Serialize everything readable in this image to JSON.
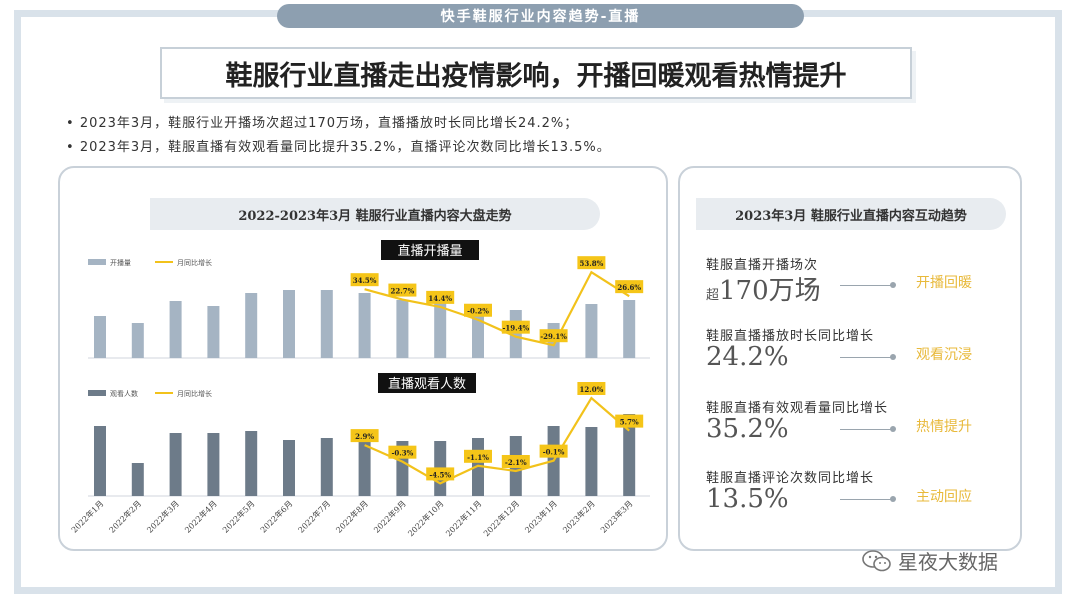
{
  "banner": "快手鞋服行业内容趋势-直播",
  "headline": "鞋服行业直播走出疫情影响，开播回暖观看热情提升",
  "bullets": [
    "2023年3月，鞋服行业开播场次超过170万场，直播播放时长同比增长24.2%；",
    "2023年3月，鞋服直播有效观看量同比提升35.2%，直播评论次数同比增长13.5%。"
  ],
  "left_panel": {
    "title": "2022-2023年3月 鞋服行业直播内容大盘走势"
  },
  "right_panel": {
    "title": "2023年3月 鞋服行业直播内容互动趋势",
    "stats": [
      {
        "label": "鞋服直播开播场次",
        "prefix": "超",
        "value": "170万场",
        "tag": "开播回暖"
      },
      {
        "label": "鞋服直播播放时长同比增长",
        "prefix": "",
        "value": "24.2%",
        "tag": "观看沉浸"
      },
      {
        "label": "鞋服直播有效观看量同比增长",
        "prefix": "",
        "value": "35.2%",
        "tag": "热情提升"
      },
      {
        "label": "鞋服直播评论次数同比增长",
        "prefix": "",
        "value": "13.5%",
        "tag": "主动回应"
      }
    ]
  },
  "watermark": "星夜大数据",
  "colors": {
    "bar1": "#a5b4c3",
    "bar2": "#6d7b89",
    "line": "#f2c21b",
    "label_bg": "#f5c518"
  },
  "chart_data": [
    {
      "type": "bar",
      "title": "直播开播量",
      "categories": [
        "2022年1月",
        "2022年2月",
        "2022年3月",
        "2022年4月",
        "2022年5月",
        "2022年6月",
        "2022年7月",
        "2022年8月",
        "2022年9月",
        "2022年10月",
        "2022年11月",
        "2022年12月",
        "2023年1月",
        "2023年2月",
        "2023年3月"
      ],
      "series": [
        {
          "name": "开播量",
          "kind": "bar",
          "values": [
            42,
            35,
            57,
            52,
            65,
            68,
            68,
            65,
            58,
            55,
            48,
            48,
            35,
            54,
            58
          ]
        },
        {
          "name": "月同比增长",
          "kind": "line",
          "values": [
            null,
            null,
            null,
            null,
            null,
            null,
            null,
            34.5,
            22.7,
            14.4,
            -0.2,
            -19.4,
            -29.1,
            53.8,
            26.6
          ],
          "labels": [
            "",
            "",
            "",
            "",
            "",
            "",
            "",
            "34.5%",
            "22.7%",
            "14.4%",
            "-0.2%",
            "-19.4%",
            "-29.1%",
            "53.8%",
            "26.6%"
          ]
        }
      ],
      "ylim": [
        0,
        100
      ],
      "legend": "top-left"
    },
    {
      "type": "bar",
      "title": "直播观看人数",
      "categories": [
        "2022年1月",
        "2022年2月",
        "2022年3月",
        "2022年4月",
        "2022年5月",
        "2022年6月",
        "2022年7月",
        "2022年8月",
        "2022年9月",
        "2022年10月",
        "2022年11月",
        "2022年12月",
        "2023年1月",
        "2023年2月",
        "2023年3月"
      ],
      "series": [
        {
          "name": "观看人数",
          "kind": "bar",
          "values": [
            70,
            33,
            63,
            63,
            65,
            56,
            58,
            66,
            55,
            55,
            58,
            60,
            70,
            69,
            82
          ]
        },
        {
          "name": "月同比增长",
          "kind": "line",
          "values": [
            null,
            null,
            null,
            null,
            null,
            null,
            null,
            2.9,
            -0.3,
            -4.5,
            -1.1,
            -2.1,
            -0.1,
            12.0,
            5.7
          ],
          "labels": [
            "",
            "",
            "",
            "",
            "",
            "",
            "",
            "2.9%",
            "-0.3%",
            "-4.5%",
            "-1.1%",
            "-2.1%",
            "-0.1%",
            "12.0%",
            "5.7%"
          ]
        }
      ],
      "ylim": [
        0,
        100
      ],
      "legend": "top-left"
    }
  ]
}
